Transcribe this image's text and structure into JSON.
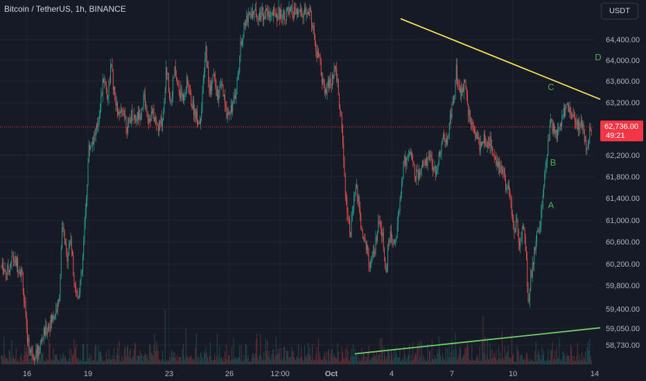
{
  "header": {
    "title": "Bitcoin / TetherUS, 1h, BINANCE"
  },
  "currency": {
    "label": "USDT"
  },
  "price_badge": {
    "price": "62,736.00",
    "countdown": "49:21"
  },
  "colors": {
    "background": "#161a25",
    "up": "#26a69a",
    "down": "#ef5350",
    "trendline_top": "#f5e15a",
    "trendline_bottom": "#6fd46f",
    "wave_labels": "#4caf50",
    "current_price": "#f23645"
  },
  "chart_data": {
    "type": "candlestick",
    "title": "",
    "xlabel": "",
    "ylabel": "",
    "grid": true,
    "y_tick_labels": [
      "64,400.00",
      "64,000.00",
      "63,600.00",
      "63,200.00",
      "62,200.00",
      "61,800.00",
      "61,400.00",
      "61,000.00",
      "60,600.00",
      "60,200.00",
      "59,800.00",
      "59,400.00",
      "59,050.00",
      "58,730.00"
    ],
    "x_tick_labels": [
      "16",
      "19",
      "23",
      "26",
      "12:00",
      "Oct",
      "4",
      "7",
      "10",
      "14"
    ],
    "current_price": 62736,
    "wave_labels": [
      {
        "text": "A",
        "x": 795,
        "price": 61280
      },
      {
        "text": "B",
        "x": 798,
        "price": 62070
      },
      {
        "text": "C",
        "x": 795,
        "price": 63500
      },
      {
        "text": "D",
        "x": 863,
        "price": 64070
      }
    ],
    "trendlines": [
      {
        "name": "upper",
        "points": [
          [
            578,
            64800
          ],
          [
            866,
            63260
          ]
        ]
      },
      {
        "name": "lower",
        "points": [
          [
            512,
            58560
          ],
          [
            866,
            59060
          ]
        ]
      }
    ],
    "price_path": [
      [
        2,
        60150
      ],
      [
        10,
        60050
      ],
      [
        18,
        60300
      ],
      [
        25,
        60200
      ],
      [
        32,
        60000
      ],
      [
        38,
        59000
      ],
      [
        42,
        58700
      ],
      [
        48,
        58560
      ],
      [
        55,
        58600
      ],
      [
        62,
        58900
      ],
      [
        70,
        59100
      ],
      [
        78,
        59300
      ],
      [
        85,
        59500
      ],
      [
        90,
        60900
      ],
      [
        96,
        60300
      ],
      [
        102,
        60700
      ],
      [
        106,
        60000
      ],
      [
        112,
        59600
      ],
      [
        118,
        60000
      ],
      [
        124,
        61300
      ],
      [
        128,
        62300
      ],
      [
        134,
        62500
      ],
      [
        140,
        62700
      ],
      [
        145,
        63200
      ],
      [
        150,
        63700
      ],
      [
        155,
        63300
      ],
      [
        160,
        63900
      ],
      [
        166,
        63200
      ],
      [
        172,
        62900
      ],
      [
        178,
        63100
      ],
      [
        184,
        62700
      ],
      [
        190,
        63000
      ],
      [
        196,
        62900
      ],
      [
        202,
        63000
      ],
      [
        208,
        63300
      ],
      [
        214,
        62900
      ],
      [
        220,
        63000
      ],
      [
        228,
        62700
      ],
      [
        235,
        62900
      ],
      [
        240,
        63900
      ],
      [
        246,
        63200
      ],
      [
        252,
        63800
      ],
      [
        258,
        63400
      ],
      [
        264,
        63300
      ],
      [
        270,
        63600
      ],
      [
        276,
        63200
      ],
      [
        282,
        63000
      ],
      [
        288,
        62800
      ],
      [
        293,
        63500
      ],
      [
        297,
        64200
      ],
      [
        302,
        63400
      ],
      [
        308,
        63700
      ],
      [
        314,
        63300
      ],
      [
        320,
        63500
      ],
      [
        326,
        63000
      ],
      [
        332,
        63100
      ],
      [
        338,
        63200
      ],
      [
        344,
        63800
      ],
      [
        348,
        64400
      ],
      [
        354,
        64700
      ],
      [
        358,
        64900
      ],
      [
        364,
        64900
      ],
      [
        448,
        64900
      ],
      [
        452,
        64600
      ],
      [
        456,
        64100
      ],
      [
        460,
        64100
      ],
      [
        466,
        63500
      ],
      [
        470,
        63300
      ],
      [
        474,
        63600
      ],
      [
        478,
        63500
      ],
      [
        482,
        63800
      ],
      [
        486,
        63700
      ],
      [
        490,
        63100
      ],
      [
        494,
        62600
      ],
      [
        498,
        61600
      ],
      [
        502,
        61000
      ],
      [
        506,
        60800
      ],
      [
        510,
        61300
      ],
      [
        514,
        61600
      ],
      [
        518,
        61200
      ],
      [
        522,
        60800
      ],
      [
        526,
        60700
      ],
      [
        530,
        60400
      ],
      [
        534,
        60100
      ],
      [
        540,
        60400
      ],
      [
        546,
        60900
      ],
      [
        552,
        60700
      ],
      [
        556,
        60000
      ],
      [
        560,
        60500
      ],
      [
        564,
        60800
      ],
      [
        568,
        60500
      ],
      [
        574,
        61000
      ],
      [
        578,
        61500
      ],
      [
        582,
        62000
      ],
      [
        586,
        62100
      ],
      [
        592,
        62300
      ],
      [
        598,
        61900
      ],
      [
        604,
        61800
      ],
      [
        610,
        62000
      ],
      [
        616,
        62100
      ],
      [
        622,
        62100
      ],
      [
        628,
        61900
      ],
      [
        634,
        62200
      ],
      [
        638,
        62500
      ],
      [
        642,
        62400
      ],
      [
        646,
        62500
      ],
      [
        650,
        63000
      ],
      [
        654,
        63200
      ],
      [
        658,
        63800
      ],
      [
        662,
        63600
      ],
      [
        666,
        63300
      ],
      [
        670,
        63600
      ],
      [
        674,
        63200
      ],
      [
        678,
        62900
      ],
      [
        682,
        62700
      ],
      [
        686,
        62600
      ],
      [
        690,
        62500
      ],
      [
        694,
        62300
      ],
      [
        698,
        62600
      ],
      [
        702,
        62400
      ],
      [
        706,
        62500
      ],
      [
        710,
        62300
      ],
      [
        714,
        62200
      ],
      [
        718,
        62000
      ],
      [
        722,
        62000
      ],
      [
        726,
        61900
      ],
      [
        730,
        61600
      ],
      [
        734,
        61500
      ],
      [
        738,
        61200
      ],
      [
        742,
        60800
      ],
      [
        746,
        61000
      ],
      [
        750,
        60400
      ],
      [
        754,
        60900
      ],
      [
        758,
        60600
      ],
      [
        762,
        59500
      ],
      [
        766,
        60000
      ],
      [
        770,
        60300
      ],
      [
        774,
        60700
      ],
      [
        778,
        60800
      ],
      [
        782,
        61300
      ],
      [
        786,
        61800
      ],
      [
        790,
        62300
      ],
      [
        794,
        62800
      ],
      [
        798,
        62700
      ],
      [
        802,
        62600
      ],
      [
        806,
        62700
      ],
      [
        810,
        62800
      ],
      [
        814,
        63000
      ],
      [
        818,
        63200
      ],
      [
        822,
        63100
      ],
      [
        826,
        62900
      ],
      [
        830,
        62800
      ],
      [
        834,
        62700
      ],
      [
        838,
        62900
      ],
      [
        842,
        62600
      ],
      [
        846,
        62400
      ],
      [
        850,
        62600
      ],
      [
        854,
        62736
      ]
    ]
  }
}
